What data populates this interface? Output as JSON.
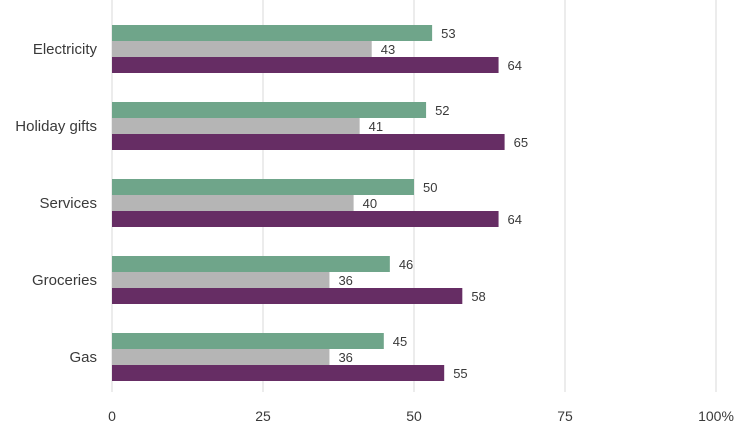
{
  "chart_data": {
    "type": "bar",
    "orientation": "horizontal",
    "categories": [
      "Electricity",
      "Holiday gifts",
      "Services",
      "Groceries",
      "Gas"
    ],
    "series": [
      {
        "color": "#6fa58a",
        "values": [
          53,
          52,
          50,
          46,
          45
        ]
      },
      {
        "color": "#b5b5b5",
        "values": [
          43,
          41,
          40,
          36,
          36
        ]
      },
      {
        "color": "#662d64",
        "values": [
          64,
          65,
          64,
          58,
          55
        ]
      }
    ],
    "xlim": [
      0,
      100
    ],
    "x_ticks": [
      "0",
      "25",
      "50",
      "75",
      "100%"
    ],
    "grid": true,
    "legend": "none"
  }
}
